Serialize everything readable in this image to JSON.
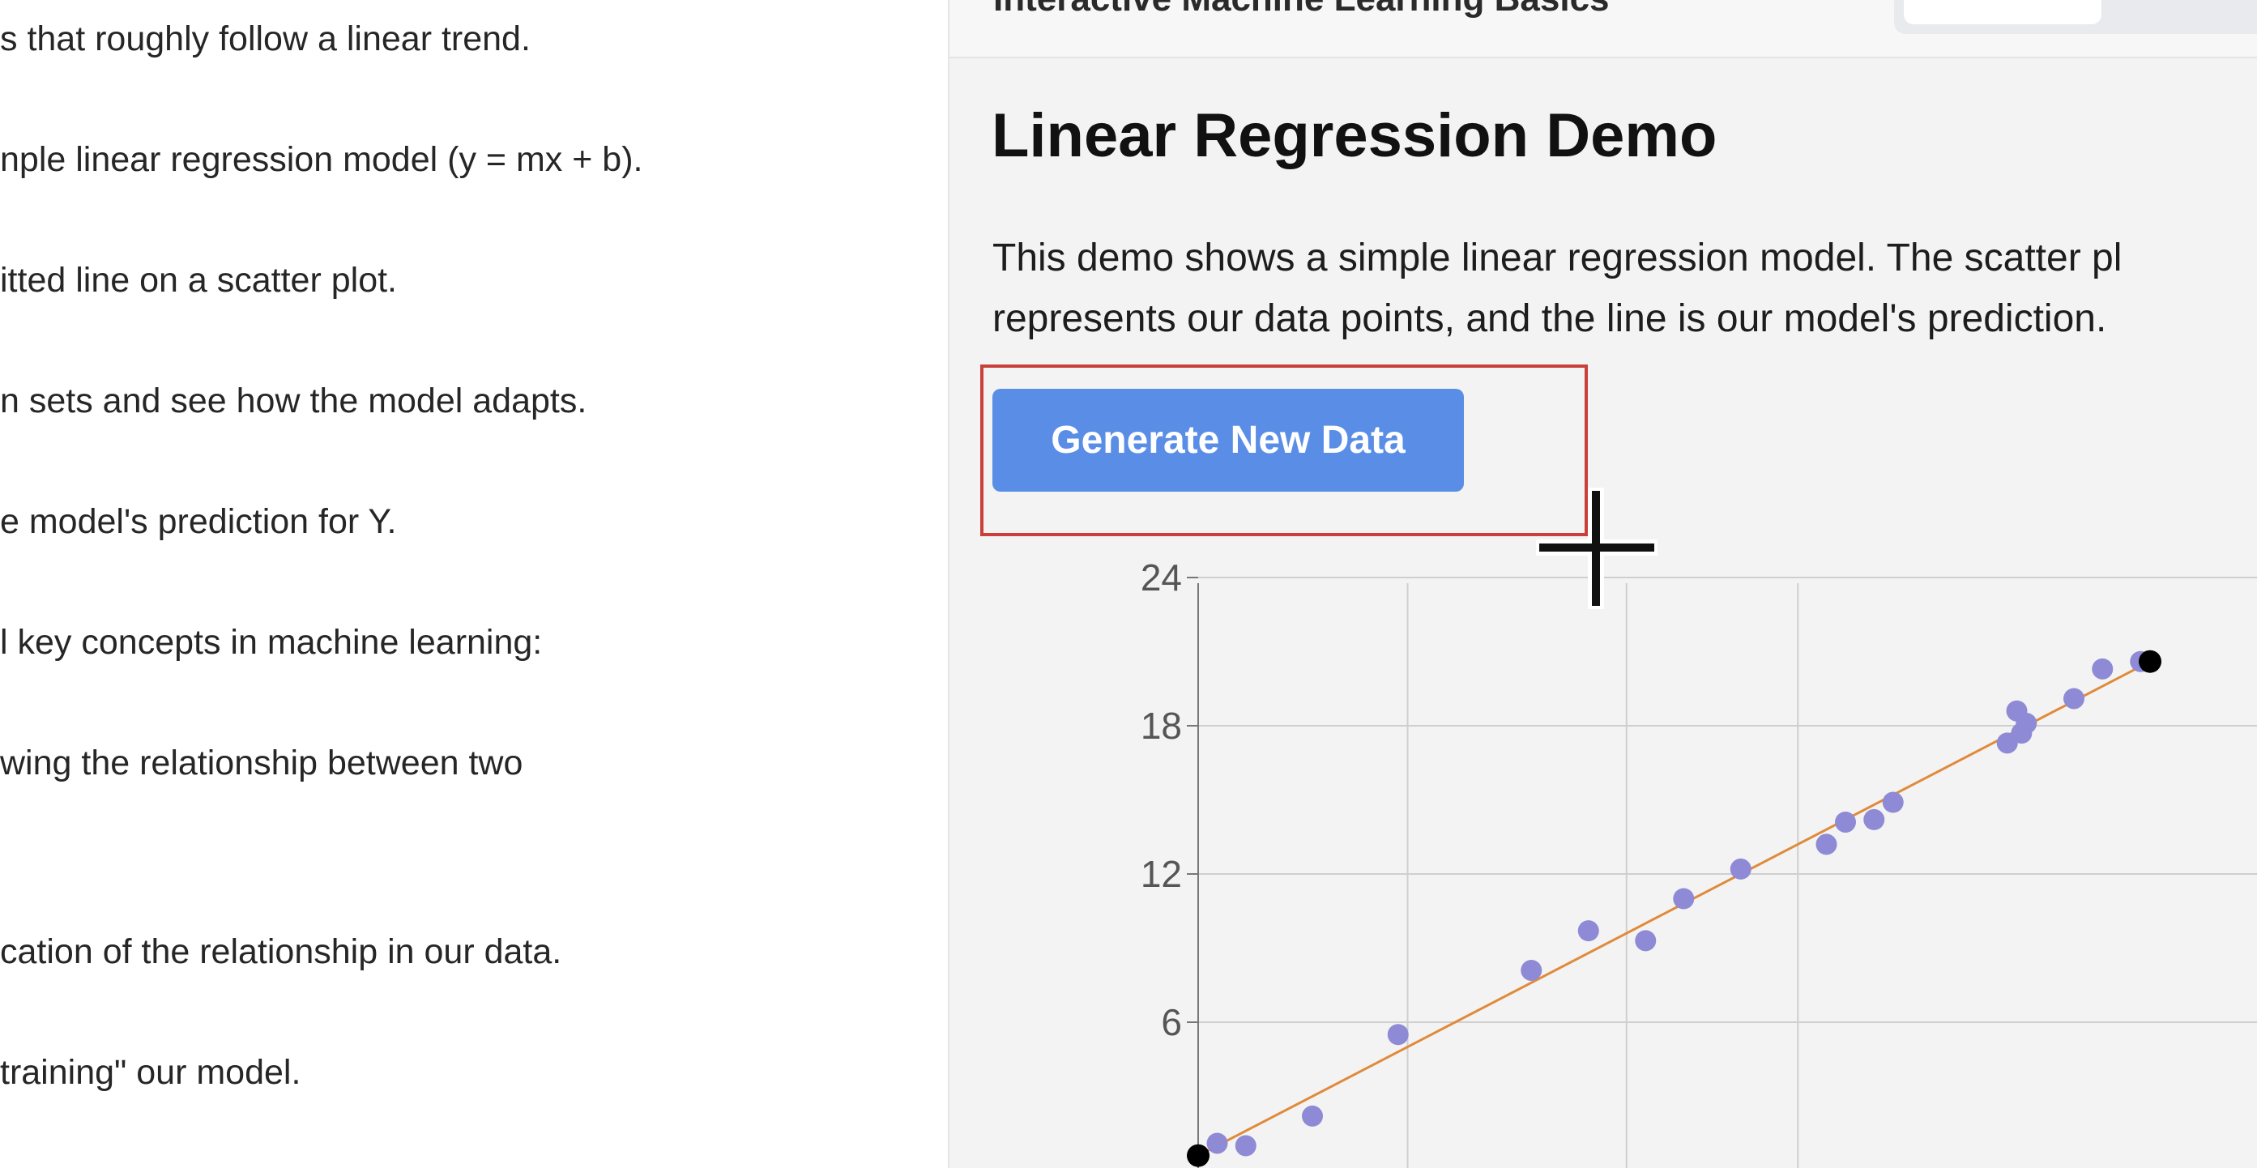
{
  "left_text": {
    "lines": [
      "s that roughly follow a linear trend.",
      "nple linear regression model (y = mx + b).",
      "itted line on a scatter plot.",
      "n sets and see how the model adapts.",
      "e model's prediction for Y.",
      "l key concepts in machine learning:",
      "wing the relationship between two",
      "cation of the relationship in our data.",
      "training\" our model."
    ]
  },
  "header": {
    "app_title": "Interactive Machine Learning Basics"
  },
  "demo": {
    "title": "Linear Regression Demo",
    "description_line1": "This demo shows a simple linear regression model. The scatter pl",
    "description_line2": "represents our data points, and the line is our model's prediction.",
    "generate_button_label": "Generate New Data"
  },
  "chart_data": {
    "type": "scatter",
    "title": "",
    "xlabel": "",
    "ylabel": "",
    "ylim": [
      0,
      24
    ],
    "yticks": [
      "24",
      "18",
      "12",
      "6"
    ],
    "grid": true,
    "colors": {
      "points": "#8e8ad6",
      "line": "#e08a3a",
      "line_endpoints": "#000000"
    },
    "points": [
      {
        "x": 0.2,
        "y": 1.1
      },
      {
        "x": 0.5,
        "y": 1.0
      },
      {
        "x": 1.2,
        "y": 2.2
      },
      {
        "x": 2.1,
        "y": 5.5
      },
      {
        "x": 3.5,
        "y": 8.1
      },
      {
        "x": 4.1,
        "y": 9.7
      },
      {
        "x": 4.7,
        "y": 9.3
      },
      {
        "x": 5.1,
        "y": 11.0
      },
      {
        "x": 5.7,
        "y": 12.2
      },
      {
        "x": 6.6,
        "y": 13.2
      },
      {
        "x": 6.8,
        "y": 14.1
      },
      {
        "x": 7.1,
        "y": 14.2
      },
      {
        "x": 7.3,
        "y": 14.9
      },
      {
        "x": 8.5,
        "y": 17.3
      },
      {
        "x": 8.6,
        "y": 18.6
      },
      {
        "x": 8.65,
        "y": 17.7
      },
      {
        "x": 8.7,
        "y": 18.1
      },
      {
        "x": 9.2,
        "y": 19.1
      },
      {
        "x": 9.5,
        "y": 20.3
      },
      {
        "x": 9.9,
        "y": 20.6
      }
    ],
    "fit_line": {
      "x": [
        0.0,
        10.0
      ],
      "y": [
        0.6,
        20.6
      ]
    }
  }
}
